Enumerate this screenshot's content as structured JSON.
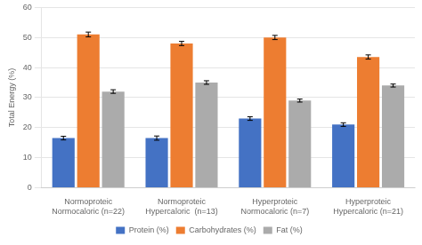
{
  "chart_data": {
    "type": "bar",
    "categories": [
      "Normoproteic\nNormocaloric (n=22)",
      "Normoproteic\nHypercaloric  (n=13)",
      "Hyperproteic\nNormocaloric (n=7)",
      "Hyperproteic\nHypercaloric (n=21)"
    ],
    "series": [
      {
        "name": "Protein (%)",
        "color": "#4472C4",
        "values": [
          16.5,
          16.5,
          23.0,
          21.0
        ],
        "errors": [
          0.6,
          0.7,
          0.6,
          0.6
        ]
      },
      {
        "name": "Carbohydrates (%)",
        "color": "#ED7D31",
        "values": [
          51.0,
          48.0,
          50.0,
          43.5
        ],
        "errors": [
          0.8,
          0.7,
          0.7,
          0.7
        ]
      },
      {
        "name": "Fat (%)",
        "color": "#ABABAB",
        "values": [
          32.0,
          35.0,
          29.0,
          34.0
        ],
        "errors": [
          0.6,
          0.6,
          0.5,
          0.5
        ]
      }
    ],
    "ylabel": "Total Energy (%)",
    "ylim": [
      0,
      60
    ],
    "yticks": [
      0,
      10,
      20,
      30,
      40,
      50,
      60
    ],
    "grid": true,
    "legend": "bottom"
  }
}
